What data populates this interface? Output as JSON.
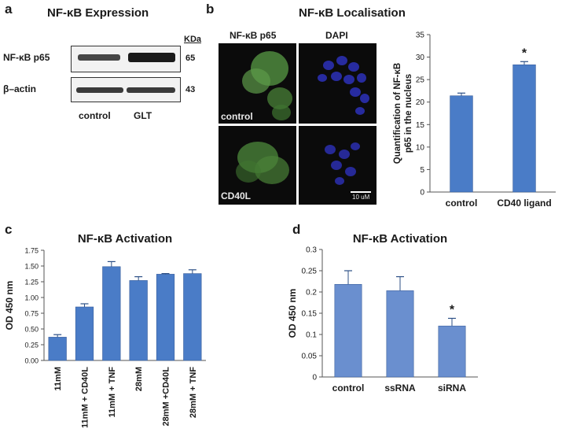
{
  "panel_a": {
    "letter": "a",
    "title": "NF-κB Expression",
    "kda_label": "KDa",
    "row1_label": "NF-κB p65",
    "row1_kda": "65",
    "row2_label": "β–actin",
    "row2_kda": "43",
    "lane1": "control",
    "lane2": "GLT"
  },
  "panel_b": {
    "letter": "b",
    "title": "NF-κB Localisation",
    "col1": "NF-κB  p65",
    "col2": "DAPI",
    "row1_caption": "control",
    "row2_caption": "CD40L",
    "scale_bar": "10 uM"
  },
  "panel_c": {
    "letter": "c"
  },
  "panel_d": {
    "letter": "d"
  },
  "chart_data": [
    {
      "id": "b",
      "type": "bar",
      "categories": [
        "control",
        "CD40 ligand"
      ],
      "values": [
        21.4,
        28.3
      ],
      "errors": [
        0.6,
        0.7
      ],
      "ylabel": "Quantification of NF-κB p65 in the nucleus",
      "ylim": [
        0,
        35
      ],
      "yticks": [
        "0",
        "5",
        "10",
        "15",
        "20",
        "25",
        "30",
        "35"
      ],
      "annotations": [
        "",
        "*"
      ],
      "color": "#4a7cc7"
    },
    {
      "id": "c",
      "type": "bar",
      "title": "NF-κB Activation",
      "categories": [
        "11mM",
        "11mM + CD40L",
        "11mM + TNF",
        "28mM",
        "28mM +CD40L",
        "28mM + TNF"
      ],
      "values": [
        0.37,
        0.85,
        1.49,
        1.27,
        1.37,
        1.38
      ],
      "errors": [
        0.04,
        0.05,
        0.08,
        0.06,
        0.01,
        0.06
      ],
      "ylabel": "OD 450 nm",
      "ylim": [
        0,
        1.75
      ],
      "yticks": [
        "0.00",
        "0.25",
        "0.50",
        "0.75",
        "1.00",
        "1.25",
        "1.50",
        "1.75"
      ],
      "color": "#4a7cc7"
    },
    {
      "id": "d",
      "type": "bar",
      "title": "NF-κB Activation",
      "categories": [
        "control",
        "ssRNA",
        "siRNA"
      ],
      "values": [
        0.218,
        0.203,
        0.12
      ],
      "errors": [
        0.032,
        0.033,
        0.018
      ],
      "ylabel": "OD 450 nm",
      "ylim": [
        0,
        0.3
      ],
      "yticks": [
        "0",
        "0.05",
        "0.1",
        "0.15",
        "0.2",
        "0.25",
        "0.3"
      ],
      "annotations": [
        "",
        "",
        "*"
      ],
      "color": "#6a8fcf"
    }
  ]
}
